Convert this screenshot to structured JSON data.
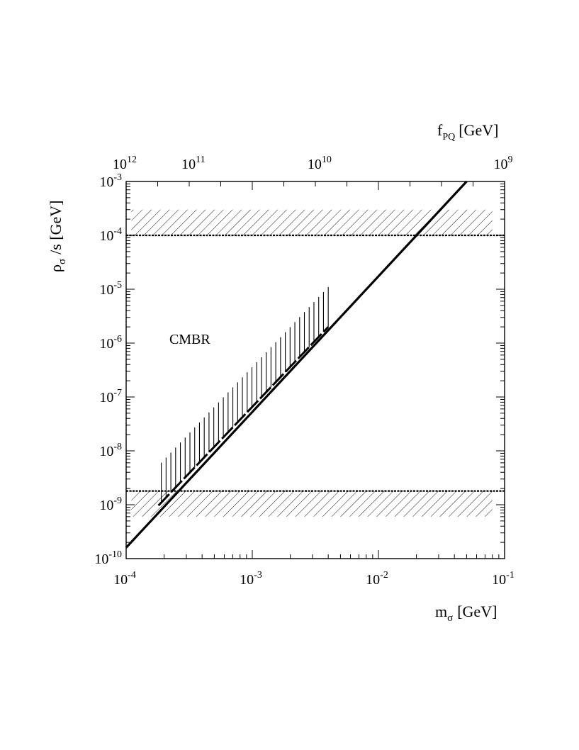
{
  "chart_data": {
    "type": "line",
    "x_scale": "log",
    "y_scale": "log",
    "xlabel": "m",
    "xlabel_sub": "σ",
    "xlabel_unit": "[GeV]",
    "ylabel": "ρ",
    "ylabel_sub": "σ",
    "ylabel_unit": "/s [GeV]",
    "top_axis_label": "f",
    "top_axis_label_sub": "PQ",
    "top_axis_label_unit": "[GeV]",
    "xlim": [
      0.0001,
      0.1
    ],
    "ylim": [
      1e-10,
      0.001
    ],
    "x_ticks": [
      {
        "value": 0.0001,
        "base": "10",
        "exp": "-4"
      },
      {
        "value": 0.001,
        "base": "10",
        "exp": "-3"
      },
      {
        "value": 0.01,
        "base": "10",
        "exp": "-2"
      },
      {
        "value": 0.1,
        "base": "10",
        "exp": "-1"
      }
    ],
    "y_ticks": [
      {
        "value": 1e-10,
        "base": "10",
        "exp": "-10"
      },
      {
        "value": 1e-09,
        "base": "10",
        "exp": "-9"
      },
      {
        "value": 1e-08,
        "base": "10",
        "exp": "-8"
      },
      {
        "value": 1e-07,
        "base": "10",
        "exp": "-7"
      },
      {
        "value": 1e-06,
        "base": "10",
        "exp": "-6"
      },
      {
        "value": 1e-05,
        "base": "10",
        "exp": "-5"
      },
      {
        "value": 0.0001,
        "base": "10",
        "exp": "-4"
      },
      {
        "value": 0.001,
        "base": "10",
        "exp": "-3"
      }
    ],
    "top_ticks": [
      {
        "value": 1000000000000.0,
        "x_at": 0.0001,
        "base": "10",
        "exp": "12"
      },
      {
        "value": 100000000000.0,
        "x_at": 0.00035,
        "base": "10",
        "exp": "11"
      },
      {
        "value": 10000000000.0,
        "x_at": 0.0035,
        "base": "10",
        "exp": "10"
      },
      {
        "value": 1000000000.0,
        "x_at": 0.1,
        "base": "10",
        "exp": "9"
      }
    ],
    "main_line": {
      "x": [
        0.0001,
        0.05
      ],
      "y": [
        1.6e-10,
        0.001
      ]
    },
    "upper_band": {
      "x_range": [
        0.00011,
        0.08
      ],
      "y_line": 0.0001,
      "y_top": 0.0003
    },
    "lower_band": {
      "x_range": [
        0.00011,
        0.08
      ],
      "y_line": 1.8e-09,
      "y_bottom": 6e-10
    },
    "cmbr_region": {
      "label": "CMBR",
      "label_x": 0.00022,
      "label_y": 1.2e-06,
      "x_range": [
        0.00019,
        0.004
      ],
      "y_bottom_start": 1.1e-09,
      "y_bottom_end": 2e-06,
      "hatch_height_factor": 5.5,
      "hatch_count": 36
    }
  }
}
